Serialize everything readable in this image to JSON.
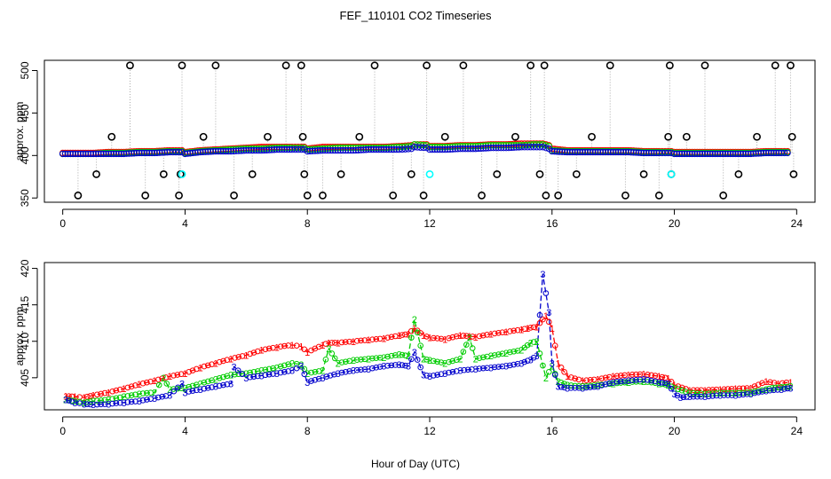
{
  "title": "FEF_110101  CO2 Timeseries",
  "xlabel": "Hour of Day (UTC)",
  "colors": {
    "s1": "#ff0000",
    "s2": "#00cc00",
    "s3": "#0000cc",
    "outlier": "#000000",
    "flag": "#00ffff",
    "conn": "#aaaaaa"
  },
  "chart_data": [
    {
      "type": "scatter",
      "panel": "top",
      "ylabel": "approx. ppm",
      "xlim": [
        -0.6,
        24.6
      ],
      "ylim": [
        345,
        512
      ],
      "xticks": [
        0,
        4,
        8,
        12,
        16,
        20,
        24
      ],
      "yticks": [
        350,
        400,
        450,
        500
      ],
      "xtick_labels": [
        "0",
        "4",
        "8",
        "12",
        "16",
        "20",
        "24"
      ],
      "ytick_labels": [
        "350",
        "400",
        "450",
        "500"
      ],
      "outliers": {
        "x": [
          0.5,
          1.1,
          1.6,
          2.2,
          2.7,
          3.3,
          3.8,
          3.85,
          3.9,
          4.6,
          5.0,
          5.6,
          6.2,
          6.7,
          7.3,
          7.8,
          7.85,
          7.9,
          8.0,
          8.5,
          9.1,
          9.7,
          10.2,
          10.8,
          11.4,
          11.8,
          11.9,
          12.5,
          13.1,
          13.7,
          14.2,
          14.8,
          15.3,
          15.6,
          15.75,
          15.8,
          16.2,
          16.8,
          17.3,
          17.9,
          18.4,
          19.0,
          19.5,
          19.8,
          19.85,
          19.9,
          20.4,
          21.0,
          21.6,
          22.1,
          22.7,
          23.3,
          23.8,
          23.85,
          23.9
        ],
        "y": [
          353,
          378,
          422,
          506,
          353,
          378,
          353,
          378,
          506,
          422,
          506,
          353,
          378,
          422,
          506,
          506,
          422,
          378,
          353,
          353,
          378,
          422,
          506,
          353,
          378,
          353,
          506,
          422,
          506,
          353,
          378,
          422,
          506,
          378,
          506,
          353,
          353,
          378,
          422,
          506,
          353,
          378,
          353,
          422,
          506,
          378,
          422,
          506,
          353,
          378,
          422,
          506,
          506,
          422,
          378
        ]
      },
      "flags": {
        "x": [
          3.9,
          12.0,
          19.9
        ],
        "y": [
          378,
          378,
          378
        ]
      },
      "series": [
        {
          "name": "1",
          "x": [
            0.0,
            0.5,
            1.0,
            1.5,
            2.0,
            2.5,
            3.0,
            3.5,
            3.9,
            4.0,
            4.5,
            5.0,
            5.5,
            6.0,
            6.5,
            7.0,
            7.5,
            7.9,
            8.0,
            8.5,
            9.0,
            9.5,
            10.0,
            10.5,
            11.0,
            11.4,
            11.5,
            11.9,
            12.0,
            12.5,
            13.0,
            13.5,
            14.0,
            14.5,
            15.0,
            15.4,
            15.7,
            15.9,
            16.0,
            16.5,
            17.0,
            17.5,
            18.0,
            18.5,
            19.0,
            19.5,
            19.9,
            20.0,
            20.5,
            21.0,
            21.5,
            22.0,
            22.5,
            23.0,
            23.5,
            23.8
          ],
          "y": [
            403,
            403,
            403,
            404,
            404,
            405,
            405,
            406,
            406,
            404,
            406,
            407,
            408,
            409,
            410,
            410,
            410,
            410,
            408,
            410,
            410,
            410,
            410,
            410,
            411,
            412,
            413,
            413,
            411,
            411,
            412,
            412,
            413,
            413,
            414,
            414,
            414,
            412,
            408,
            406,
            406,
            406,
            406,
            406,
            405,
            405,
            405,
            404,
            404,
            404,
            404,
            404,
            404,
            405,
            405,
            405
          ]
        },
        {
          "name": "2",
          "x": [
            0.0,
            0.5,
            1.0,
            1.5,
            2.0,
            2.5,
            3.0,
            3.5,
            3.9,
            4.0,
            4.5,
            5.0,
            5.5,
            6.0,
            6.5,
            7.0,
            7.5,
            7.9,
            8.0,
            8.5,
            9.0,
            9.5,
            10.0,
            10.5,
            11.0,
            11.4,
            11.5,
            11.9,
            12.0,
            12.5,
            13.0,
            13.5,
            14.0,
            14.5,
            15.0,
            15.4,
            15.7,
            15.9,
            16.0,
            16.5,
            17.0,
            17.5,
            18.0,
            18.5,
            19.0,
            19.5,
            19.9,
            20.0,
            20.5,
            21.0,
            21.5,
            22.0,
            22.5,
            23.0,
            23.5,
            23.8
          ],
          "y": [
            402,
            402,
            402,
            403,
            403,
            404,
            404,
            405,
            405,
            403,
            405,
            406,
            407,
            408,
            408,
            409,
            409,
            409,
            407,
            408,
            409,
            409,
            409,
            409,
            410,
            411,
            413,
            412,
            410,
            410,
            411,
            411,
            412,
            412,
            412,
            413,
            413,
            411,
            406,
            405,
            405,
            405,
            405,
            405,
            404,
            404,
            404,
            403,
            403,
            403,
            403,
            403,
            403,
            404,
            404,
            404
          ]
        },
        {
          "name": "3",
          "x": [
            0.0,
            0.5,
            1.0,
            1.5,
            2.0,
            2.5,
            3.0,
            3.5,
            3.9,
            4.0,
            4.5,
            5.0,
            5.5,
            6.0,
            6.5,
            7.0,
            7.5,
            7.9,
            8.0,
            8.5,
            9.0,
            9.5,
            10.0,
            10.5,
            11.0,
            11.4,
            11.5,
            11.9,
            12.0,
            12.5,
            13.0,
            13.5,
            14.0,
            14.5,
            15.0,
            15.4,
            15.7,
            15.9,
            16.0,
            16.5,
            17.0,
            17.5,
            18.0,
            18.5,
            19.0,
            19.5,
            19.9,
            20.0,
            20.5,
            21.0,
            21.5,
            22.0,
            22.5,
            23.0,
            23.5,
            23.8
          ],
          "y": [
            402,
            402,
            402,
            402,
            402,
            403,
            403,
            404,
            404,
            402,
            404,
            405,
            405,
            406,
            406,
            407,
            407,
            407,
            405,
            406,
            406,
            406,
            407,
            407,
            407,
            408,
            410,
            409,
            407,
            407,
            408,
            408,
            409,
            409,
            410,
            410,
            410,
            408,
            405,
            404,
            404,
            404,
            404,
            404,
            403,
            403,
            403,
            402,
            402,
            402,
            402,
            402,
            402,
            403,
            403,
            403
          ]
        }
      ]
    },
    {
      "type": "line",
      "panel": "bottom",
      "ylabel": "approx. ppm",
      "xlim": [
        -0.6,
        24.6
      ],
      "ylim": [
        400.6,
        420.8
      ],
      "xticks": [
        0,
        4,
        8,
        12,
        16,
        20,
        24
      ],
      "yticks": [
        405,
        410,
        415,
        420
      ],
      "xtick_labels": [
        "0",
        "4",
        "8",
        "12",
        "16",
        "20",
        "24"
      ],
      "ytick_labels": [
        "405",
        "410",
        "415",
        "420"
      ],
      "series": [
        {
          "name": "1",
          "x": [
            0.1,
            0.4,
            0.7,
            1.0,
            1.5,
            2.0,
            2.5,
            3.0,
            3.5,
            4.0,
            4.5,
            5.0,
            5.5,
            6.0,
            6.5,
            7.0,
            7.5,
            7.8,
            8.0,
            8.5,
            8.7,
            9.0,
            9.5,
            10.0,
            10.5,
            11.0,
            11.3,
            11.5,
            11.8,
            12.0,
            12.5,
            13.0,
            13.3,
            13.5,
            14.0,
            14.5,
            15.0,
            15.2,
            15.5,
            15.8,
            16.0,
            16.2,
            16.5,
            17.0,
            17.5,
            18.0,
            18.5,
            19.0,
            19.5,
            19.8,
            20.0,
            20.5,
            21.0,
            21.5,
            22.0,
            22.5,
            23.0,
            23.4,
            23.8
          ],
          "y": [
            402.5,
            402.4,
            402.3,
            402.6,
            403.0,
            403.5,
            404.1,
            404.6,
            405.2,
            405.6,
            406.4,
            407.0,
            407.6,
            408.1,
            408.8,
            409.2,
            409.5,
            409.3,
            408.5,
            409.5,
            409.8,
            409.8,
            410.0,
            410.2,
            410.4,
            410.8,
            411.0,
            411.8,
            410.8,
            410.5,
            410.3,
            410.8,
            410.7,
            410.6,
            411.0,
            411.3,
            411.6,
            411.8,
            412.0,
            413.5,
            411.8,
            407.0,
            405.2,
            404.6,
            404.8,
            405.2,
            405.4,
            405.5,
            405.2,
            404.9,
            404.0,
            403.3,
            403.3,
            403.4,
            403.5,
            403.6,
            404.5,
            404.2,
            404.4
          ]
        },
        {
          "name": "2",
          "x": [
            0.1,
            0.4,
            0.7,
            1.0,
            1.5,
            2.0,
            2.5,
            3.0,
            3.3,
            3.5,
            4.0,
            4.5,
            5.0,
            5.5,
            6.0,
            6.5,
            7.0,
            7.5,
            7.8,
            8.0,
            8.5,
            8.7,
            9.0,
            9.5,
            10.0,
            10.5,
            11.0,
            11.3,
            11.5,
            11.8,
            12.0,
            12.5,
            13.0,
            13.3,
            13.5,
            14.0,
            14.5,
            15.0,
            15.3,
            15.5,
            15.8,
            16.0,
            16.2,
            16.5,
            17.0,
            17.5,
            18.0,
            18.5,
            19.0,
            19.5,
            19.8,
            20.0,
            20.5,
            21.0,
            21.5,
            22.0,
            22.5,
            23.0,
            23.2,
            23.5,
            23.8
          ],
          "y": [
            402.0,
            401.8,
            401.6,
            401.8,
            402.0,
            402.4,
            402.8,
            403.0,
            405.0,
            403.4,
            403.6,
            404.2,
            404.8,
            405.4,
            405.6,
            406.0,
            406.4,
            407.0,
            406.8,
            405.6,
            406.0,
            409.0,
            407.0,
            407.4,
            407.6,
            407.8,
            408.2,
            408.0,
            413.0,
            407.6,
            407.4,
            407.0,
            407.6,
            410.5,
            407.6,
            408.0,
            408.4,
            408.8,
            409.8,
            410.0,
            405.0,
            406.6,
            404.5,
            404.0,
            403.8,
            404.0,
            404.2,
            404.4,
            404.5,
            404.2,
            404.0,
            403.6,
            402.9,
            402.8,
            402.9,
            402.9,
            403.0,
            403.4,
            403.6,
            403.7,
            403.8
          ]
        },
        {
          "name": "3",
          "x": [
            0.1,
            0.4,
            0.7,
            1.0,
            1.5,
            2.0,
            2.5,
            3.0,
            3.5,
            3.9,
            4.0,
            4.5,
            5.0,
            5.5,
            5.6,
            6.0,
            6.5,
            7.0,
            7.5,
            7.8,
            8.0,
            8.5,
            9.0,
            9.5,
            10.0,
            10.5,
            11.0,
            11.3,
            11.5,
            11.8,
            12.0,
            12.5,
            13.0,
            13.5,
            14.0,
            14.5,
            15.0,
            15.3,
            15.5,
            15.7,
            15.9,
            16.0,
            16.2,
            16.5,
            17.0,
            17.5,
            18.0,
            18.5,
            19.0,
            19.5,
            19.8,
            20.0,
            20.2,
            20.5,
            21.0,
            21.5,
            22.0,
            22.5,
            23.0,
            23.5,
            23.8
          ],
          "y": [
            402.0,
            401.6,
            401.4,
            401.3,
            401.4,
            401.6,
            401.8,
            402.2,
            402.6,
            404.2,
            403.0,
            403.4,
            403.8,
            404.2,
            406.5,
            405.0,
            405.3,
            405.6,
            406.0,
            406.6,
            404.4,
            405.0,
            405.6,
            406.0,
            406.2,
            406.6,
            406.8,
            406.6,
            408.5,
            405.4,
            405.2,
            405.6,
            406.0,
            406.2,
            406.4,
            406.6,
            407.0,
            407.5,
            408.0,
            419.2,
            414.0,
            407.0,
            403.8,
            403.6,
            403.6,
            403.8,
            404.4,
            404.6,
            404.8,
            404.4,
            404.2,
            402.8,
            402.3,
            402.4,
            402.4,
            402.6,
            402.6,
            402.8,
            403.2,
            403.4,
            403.6
          ]
        }
      ]
    }
  ]
}
